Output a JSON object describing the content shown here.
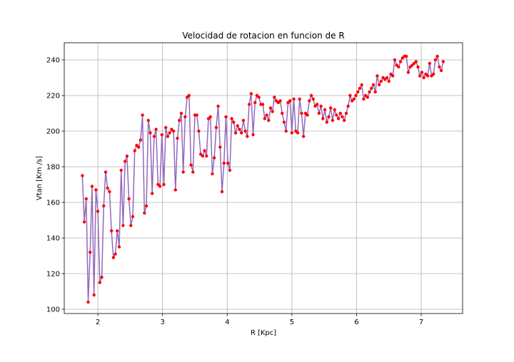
{
  "chart_data": {
    "type": "line",
    "title": "Velocidad de rotacion en funcion de R",
    "xlabel": "R [Kpc]",
    "ylabel": "Vtan [Km /s]",
    "line_color": "#9467bd",
    "marker_color": "#ff0000",
    "grid": true,
    "xlim": [
      1.48,
      7.64
    ],
    "ylim": [
      97.6,
      249.6
    ],
    "xticks": [
      2,
      3,
      4,
      5,
      6,
      7
    ],
    "yticks": [
      100,
      120,
      140,
      160,
      180,
      200,
      220,
      240
    ],
    "x": [
      1.76,
      1.79,
      1.82,
      1.85,
      1.88,
      1.91,
      1.94,
      1.97,
      2.0,
      2.03,
      2.06,
      2.09,
      2.12,
      2.15,
      2.18,
      2.21,
      2.24,
      2.27,
      2.3,
      2.33,
      2.36,
      2.39,
      2.42,
      2.45,
      2.48,
      2.51,
      2.54,
      2.57,
      2.6,
      2.63,
      2.66,
      2.69,
      2.72,
      2.75,
      2.78,
      2.81,
      2.84,
      2.87,
      2.9,
      2.93,
      2.96,
      2.99,
      3.02,
      3.05,
      3.08,
      3.11,
      3.14,
      3.17,
      3.2,
      3.23,
      3.26,
      3.29,
      3.32,
      3.35,
      3.38,
      3.41,
      3.44,
      3.47,
      3.5,
      3.53,
      3.56,
      3.59,
      3.62,
      3.65,
      3.68,
      3.71,
      3.74,
      3.77,
      3.8,
      3.83,
      3.86,
      3.89,
      3.92,
      3.95,
      3.98,
      4.01,
      4.04,
      4.07,
      4.1,
      4.13,
      4.16,
      4.19,
      4.22,
      4.25,
      4.28,
      4.31,
      4.34,
      4.37,
      4.4,
      4.43,
      4.46,
      4.49,
      4.52,
      4.55,
      4.58,
      4.61,
      4.64,
      4.67,
      4.7,
      4.73,
      4.76,
      4.79,
      4.82,
      4.85,
      4.88,
      4.91,
      4.94,
      4.97,
      5.0,
      5.03,
      5.06,
      5.09,
      5.12,
      5.15,
      5.18,
      5.21,
      5.24,
      5.27,
      5.3,
      5.33,
      5.36,
      5.39,
      5.42,
      5.45,
      5.48,
      5.51,
      5.54,
      5.57,
      5.6,
      5.63,
      5.66,
      5.69,
      5.72,
      5.75,
      5.78,
      5.81,
      5.84,
      5.87,
      5.9,
      5.93,
      5.96,
      5.99,
      6.02,
      6.05,
      6.08,
      6.11,
      6.14,
      6.17,
      6.2,
      6.23,
      6.26,
      6.29,
      6.32,
      6.35,
      6.38,
      6.41,
      6.44,
      6.47,
      6.5,
      6.53,
      6.56,
      6.59,
      6.62,
      6.65,
      6.68,
      6.71,
      6.74,
      6.77,
      6.8,
      6.83,
      6.86,
      6.89,
      6.92,
      6.95,
      6.98,
      7.01,
      7.04,
      7.07,
      7.1,
      7.13,
      7.16,
      7.19,
      7.22,
      7.25,
      7.28,
      7.31,
      7.34
    ],
    "y": [
      175,
      149,
      162,
      104,
      132,
      169,
      108,
      167,
      155,
      115,
      118,
      158,
      177,
      168,
      166,
      144,
      129,
      131,
      144,
      135,
      178,
      147,
      183,
      186,
      162,
      147,
      152,
      189,
      192,
      191,
      195,
      209,
      154,
      158,
      206,
      199,
      165,
      197,
      201,
      170,
      169,
      198,
      170,
      202,
      197,
      199,
      201,
      200,
      167,
      196,
      206,
      210,
      177,
      208,
      219,
      220,
      181,
      177,
      209,
      209,
      200,
      187,
      186,
      189,
      186,
      207,
      208,
      176,
      185,
      202,
      214,
      191,
      166,
      182,
      208,
      182,
      178,
      207,
      205,
      199,
      203,
      201,
      199,
      206,
      200,
      197,
      215,
      221,
      198,
      216,
      220,
      219,
      215,
      215,
      207,
      209,
      206,
      213,
      211,
      219,
      217,
      216,
      217,
      210,
      205,
      200,
      216,
      217,
      199,
      218,
      200,
      199,
      218,
      210,
      197,
      210,
      209,
      217,
      220,
      218,
      214,
      215,
      210,
      214,
      207,
      212,
      205,
      208,
      213,
      206,
      212,
      209,
      207,
      210,
      208,
      206,
      210,
      214,
      220,
      217,
      218,
      220,
      222,
      224,
      226,
      218,
      220,
      219,
      222,
      224,
      226,
      222,
      231,
      226,
      228,
      230,
      229,
      230,
      228,
      232,
      231,
      240,
      237,
      236,
      239,
      241,
      242,
      242,
      233,
      236,
      237,
      238,
      239,
      236,
      231,
      233,
      230,
      232,
      231,
      238,
      231,
      232,
      240,
      242,
      236,
      234,
      239
    ]
  }
}
